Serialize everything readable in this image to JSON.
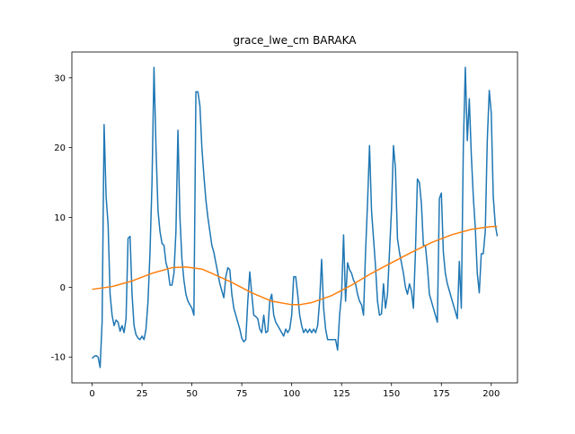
{
  "chart_data": {
    "type": "line",
    "title": "grace_lwe_cm BARAKA",
    "xlim": [
      -10.15,
      213.15
    ],
    "xticks": [
      0,
      25,
      50,
      75,
      100,
      125,
      150,
      175,
      200
    ],
    "ylim": [
      -13.7,
      33.7
    ],
    "yticks": [
      -10,
      0,
      10,
      20,
      30
    ],
    "series": [
      {
        "color": "#1f77b4",
        "x": [
          0,
          1,
          2,
          3,
          4,
          5,
          6,
          7,
          8,
          9,
          10,
          11,
          12,
          13,
          14,
          15,
          16,
          17,
          18,
          19,
          20,
          21,
          22,
          23,
          24,
          25,
          26,
          27,
          28,
          29,
          30,
          31,
          32,
          33,
          34,
          35,
          36,
          37,
          38,
          39,
          40,
          41,
          42,
          43,
          44,
          45,
          46,
          47,
          48,
          49,
          50,
          51,
          52,
          53,
          54,
          55,
          56,
          57,
          58,
          59,
          60,
          61,
          62,
          63,
          64,
          65,
          66,
          67,
          68,
          69,
          70,
          71,
          72,
          73,
          74,
          75,
          76,
          77,
          78,
          79,
          80,
          81,
          82,
          83,
          84,
          85,
          86,
          87,
          88,
          89,
          90,
          91,
          92,
          93,
          94,
          95,
          96,
          97,
          98,
          99,
          100,
          101,
          102,
          103,
          104,
          105,
          106,
          107,
          108,
          109,
          110,
          111,
          112,
          113,
          114,
          115,
          116,
          117,
          118,
          119,
          120,
          121,
          122,
          123,
          124,
          125,
          126,
          127,
          128,
          129,
          130,
          131,
          132,
          133,
          134,
          135,
          136,
          137,
          138,
          139,
          140,
          141,
          142,
          143,
          144,
          145,
          146,
          147,
          148,
          149,
          150,
          151,
          152,
          153,
          154,
          155,
          156,
          157,
          158,
          159,
          160,
          161,
          162,
          163,
          164,
          165,
          166,
          167,
          168,
          169,
          170,
          171,
          172,
          173,
          174,
          175,
          176,
          177,
          178,
          179,
          180,
          181,
          182,
          183,
          184,
          185,
          186,
          187,
          188,
          189,
          190,
          191,
          192,
          193,
          194,
          195,
          196,
          197,
          198,
          199,
          200,
          201,
          202,
          203
        ],
        "values": [
          -10.2,
          -9.9,
          -9.8,
          -10,
          -11.5,
          -5,
          23.3,
          13,
          9,
          -1,
          -4,
          -5.5,
          -4.7,
          -5,
          -6.3,
          -5.5,
          -6.5,
          -4.5,
          7,
          7.3,
          -1,
          -5.5,
          -6.8,
          -7.3,
          -7.5,
          -7,
          -7.5,
          -6,
          -2,
          5,
          15,
          31.5,
          20,
          11,
          8,
          6.3,
          6,
          3.5,
          2.5,
          0.3,
          0.3,
          2,
          8,
          22.5,
          10,
          4,
          1,
          -1,
          -2,
          -2.5,
          -3,
          -4,
          28,
          28,
          26,
          20,
          16,
          12.5,
          10,
          8,
          6,
          5,
          3.5,
          2,
          0.5,
          -0.5,
          -1.5,
          1.5,
          2.8,
          2.5,
          -1,
          -3,
          -4,
          -5,
          -6,
          -7.3,
          -7.8,
          -7.5,
          -2,
          2.2,
          -1,
          -4,
          -4.2,
          -4.5,
          -6,
          -6.5,
          -4,
          -6.5,
          -6.3,
          -2,
          -1,
          -4,
          -5,
          -5.5,
          -6,
          -6.5,
          -7,
          -6,
          -6.5,
          -6,
          -4,
          1.5,
          1.5,
          -1,
          -4,
          -5.5,
          -6.5,
          -6,
          -6.5,
          -6,
          -6.5,
          -6,
          -6.5,
          -5.5,
          -2,
          4,
          -3,
          -6,
          -7.5,
          -7.5,
          -7.5,
          -7.5,
          -7.5,
          -9,
          -4,
          -1,
          7.5,
          -2,
          3.5,
          2.5,
          2,
          1,
          0.5,
          -1,
          -2,
          -2.5,
          -4,
          5,
          12,
          20.3,
          11,
          7,
          3,
          -2,
          -4,
          -3.8,
          0.5,
          -3,
          -1,
          5,
          11,
          20.3,
          17,
          7,
          5,
          3.5,
          2,
          0,
          -1,
          0.5,
          -0.5,
          -3,
          5,
          15.5,
          15,
          12,
          6,
          6,
          3,
          -1,
          -2,
          -3,
          -4,
          -5,
          12.7,
          13.5,
          5,
          2,
          0.5,
          -0.5,
          -1.5,
          -2.5,
          -3.5,
          -4.5,
          3.7,
          -3,
          20,
          31.5,
          21,
          27,
          19,
          13,
          8.5,
          2,
          -0.8,
          4.8,
          4.8,
          8,
          21,
          28.2,
          25,
          13,
          9,
          7.3
        ]
      },
      {
        "color": "#ff7f0e",
        "x": [
          0,
          10,
          20,
          30,
          40,
          47,
          55,
          60,
          70,
          80,
          90,
          100,
          104,
          110,
          120,
          130,
          140,
          150,
          160,
          170,
          180,
          190,
          200,
          203
        ],
        "values": [
          -0.3,
          0.1,
          0.9,
          2.0,
          2.8,
          2.9,
          2.6,
          2.0,
          0.7,
          -0.8,
          -2.0,
          -2.5,
          -2.5,
          -2.2,
          -1.2,
          0.3,
          2.0,
          3.5,
          5.0,
          6.4,
          7.5,
          8.3,
          8.7,
          8.7
        ]
      }
    ]
  }
}
